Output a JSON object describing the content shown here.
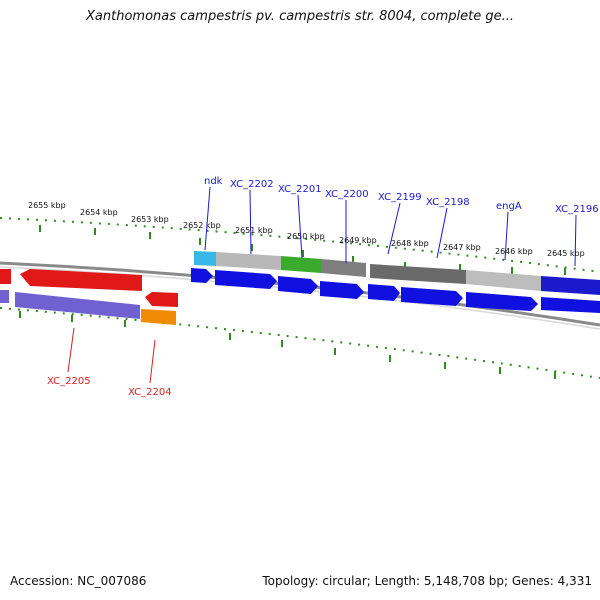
{
  "title": "Xanthomonas campestris pv. campestris str. 8004, complete ge...",
  "footer": {
    "accession": "Accession: NC_007086",
    "summary": "Topology: circular; Length: 5,148,708 bp; Genes: 4,331"
  },
  "colors": {
    "forward_label": "#1a1acc",
    "reverse_label": "#d42020",
    "tick": "#2e8b1e",
    "backbone": "#8a8a8a"
  },
  "ticks": [
    "2655 kbp",
    "2654 kbp",
    "2653 kbp",
    "2652 kbp",
    "2651 kbp",
    "2650 kbp",
    "2649 kbp",
    "2648 kbp",
    "2647 kbp",
    "2646 kbp",
    "2645 kbp"
  ],
  "genes_top": [
    "ndk",
    "XC_2202",
    "XC_2201",
    "XC_2200",
    "XC_2199",
    "XC_2198",
    "engA",
    "XC_2196"
  ],
  "genes_bottom": [
    "XC_2205",
    "XC_2204"
  ]
}
